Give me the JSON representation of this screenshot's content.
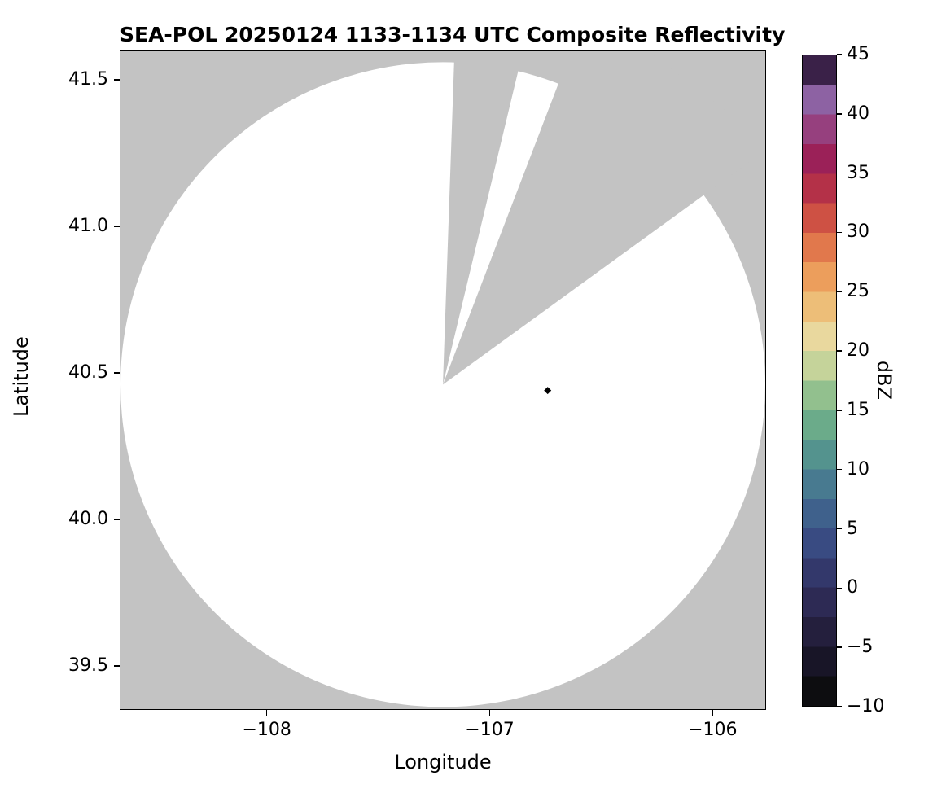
{
  "title": "SEA-POL 20250124 1133-1134 UTC Composite Reflectivity",
  "xlabel": "Longitude",
  "ylabel": "Latitude",
  "chart_data": {
    "type": "heatmap",
    "subtype": "radar-composite-reflectivity-map",
    "title": "SEA-POL 20250124 1133-1134 UTC Composite Reflectivity",
    "xlabel": "Longitude",
    "ylabel": "Latitude",
    "xlim": [
      -108.66,
      -105.76
    ],
    "ylim": [
      39.35,
      41.6
    ],
    "grid": false,
    "nodata_color": "#c3c3c3",
    "coverage_color": "#ffffff",
    "xticks": [
      {
        "v": -108,
        "label": "−108"
      },
      {
        "v": -107,
        "label": "−107"
      },
      {
        "v": -106,
        "label": "−106"
      }
    ],
    "yticks": [
      {
        "v": 41.5,
        "label": "41.5"
      },
      {
        "v": 41.0,
        "label": "41.0"
      },
      {
        "v": 40.5,
        "label": "40.5"
      },
      {
        "v": 40.0,
        "label": "40.0"
      },
      {
        "v": 39.5,
        "label": "39.5"
      }
    ],
    "coverage": {
      "center_lon": -107.21,
      "center_lat": 40.46,
      "radius_deg_lat": 1.1,
      "blocked_sector_azimuths_deg": [
        [
          2,
          13.5
        ],
        [
          21,
          54
        ]
      ]
    },
    "echoes": "none visible (coverage area blank)",
    "site_marker": {
      "lon": -106.74,
      "lat": 40.44,
      "shape": "diamond",
      "color": "#000000"
    },
    "colorbar": {
      "label": "dBZ",
      "min": -10,
      "max": 45,
      "legend_position": "right",
      "ticks": [
        {
          "v": 45,
          "label": "45"
        },
        {
          "v": 40,
          "label": "40"
        },
        {
          "v": 35,
          "label": "35"
        },
        {
          "v": 30,
          "label": "30"
        },
        {
          "v": 25,
          "label": "25"
        },
        {
          "v": 20,
          "label": "20"
        },
        {
          "v": 15,
          "label": "15"
        },
        {
          "v": 10,
          "label": "10"
        },
        {
          "v": 5,
          "label": "5"
        },
        {
          "v": 0,
          "label": "0"
        },
        {
          "v": -5,
          "label": "−5"
        },
        {
          "v": -10,
          "label": "−10"
        }
      ],
      "band_width_dbz": 2.5,
      "band_colors_bottom_to_top": [
        "#0d0d10",
        "#181527",
        "#241f3d",
        "#2d2a54",
        "#33386b",
        "#394b82",
        "#3f618c",
        "#487a90",
        "#54938e",
        "#6bab8a",
        "#92c08e",
        "#c5d39a",
        "#e9d89e",
        "#edbe78",
        "#ec9e5c",
        "#e1784c",
        "#ce5144",
        "#b43148",
        "#9b2158",
        "#96407e",
        "#8d62a3",
        "#3a2148"
      ]
    }
  }
}
